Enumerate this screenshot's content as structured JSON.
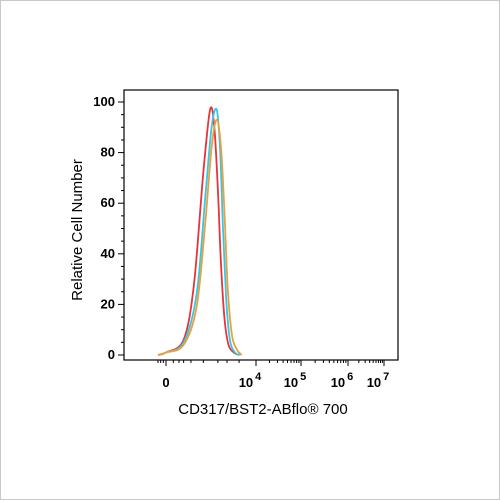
{
  "chart_data": {
    "type": "line",
    "title": "",
    "xlabel": "CD317/BST2-ABflo® 700",
    "ylabel": "Relative Cell Number",
    "x_scale": "biexponential",
    "ylim": [
      0,
      100
    ],
    "y_ticks": [
      "0",
      "20",
      "40",
      "60",
      "80",
      "100"
    ],
    "x_ticks": [
      {
        "base": "0",
        "exp": ""
      },
      {
        "base": "10",
        "exp": "4"
      },
      {
        "base": "10",
        "exp": "5"
      },
      {
        "base": "10",
        "exp": "6"
      },
      {
        "base": "10",
        "exp": "7"
      }
    ],
    "grid": false,
    "series": [
      {
        "color": "#e8323c",
        "x": [
          -300,
          0,
          300,
          600,
          1000,
          1400,
          1700,
          2000,
          2300,
          2700,
          3200,
          4000,
          5000
        ],
        "values": [
          0,
          1,
          6,
          28,
          72,
          97,
          90,
          66,
          36,
          14,
          4,
          1,
          0
        ]
      },
      {
        "color": "#35c8e6",
        "x": [
          -300,
          0,
          300,
          700,
          1100,
          1500,
          1900,
          2200,
          2500,
          2900,
          3400,
          4200,
          5200
        ],
        "values": [
          0,
          1,
          5,
          24,
          62,
          90,
          97,
          82,
          52,
          22,
          6,
          1,
          0
        ]
      },
      {
        "color": "#e8a040",
        "x": [
          -300,
          0,
          300,
          700,
          1100,
          1500,
          1900,
          2300,
          2700,
          3100,
          3700,
          4600,
          5600
        ],
        "values": [
          0,
          1,
          4,
          19,
          52,
          82,
          93,
          82,
          55,
          26,
          8,
          2,
          0
        ]
      }
    ]
  }
}
